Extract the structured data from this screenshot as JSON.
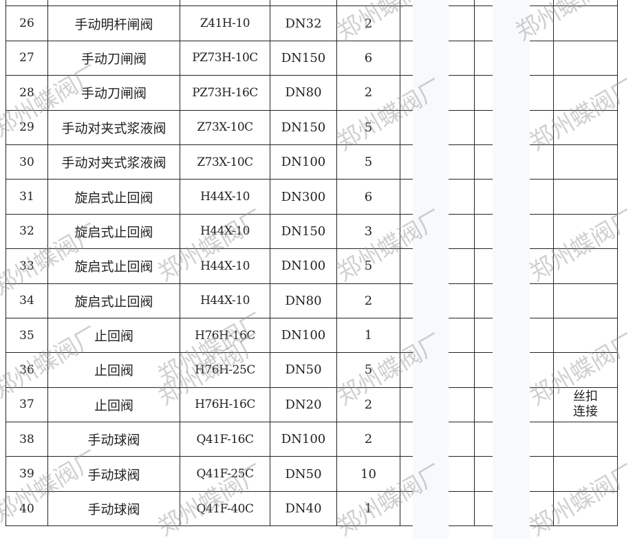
{
  "watermark": "郑州蝶阀厂",
  "rows": [
    {
      "no": "",
      "name": "",
      "model": "",
      "size": "",
      "qty": "",
      "remark": ""
    },
    {
      "no": "26",
      "name": "手动明杆闸阀",
      "model": "Z41H-10",
      "size": "DN32",
      "qty": "2",
      "remark": ""
    },
    {
      "no": "27",
      "name": "手动刀闸阀",
      "model": "PZ73H-10C",
      "size": "DN150",
      "qty": "6",
      "remark": ""
    },
    {
      "no": "28",
      "name": "手动刀闸阀",
      "model": "PZ73H-16C",
      "size": "DN80",
      "qty": "2",
      "remark": ""
    },
    {
      "no": "29",
      "name": "手动对夹式浆液阀",
      "model": "Z73X-10C",
      "size": "DN150",
      "qty": "5",
      "remark": ""
    },
    {
      "no": "30",
      "name": "手动对夹式浆液阀",
      "model": "Z73X-10C",
      "size": "DN100",
      "qty": "5",
      "remark": ""
    },
    {
      "no": "31",
      "name": "旋启式止回阀",
      "model": "H44X-10",
      "size": "DN300",
      "qty": "6",
      "remark": ""
    },
    {
      "no": "32",
      "name": "旋启式止回阀",
      "model": "H44X-10",
      "size": "DN150",
      "qty": "3",
      "remark": ""
    },
    {
      "no": "33",
      "name": "旋启式止回阀",
      "model": "H44X-10",
      "size": "DN100",
      "qty": "5",
      "remark": ""
    },
    {
      "no": "34",
      "name": "旋启式止回阀",
      "model": "H44X-10",
      "size": "DN80",
      "qty": "2",
      "remark": ""
    },
    {
      "no": "35",
      "name": "止回阀",
      "model": "H76H-16C",
      "size": "DN100",
      "qty": "1",
      "remark": ""
    },
    {
      "no": "36",
      "name": "止回阀",
      "model": "H76H-25C",
      "size": "DN50",
      "qty": "5",
      "remark": ""
    },
    {
      "no": "37",
      "name": "止回阀",
      "model": "H76H-16C",
      "size": "DN20",
      "qty": "2",
      "remark": "丝扣\n连接"
    },
    {
      "no": "38",
      "name": "手动球阀",
      "model": "Q41F-16C",
      "size": "DN100",
      "qty": "2",
      "remark": ""
    },
    {
      "no": "39",
      "name": "手动球阀",
      "model": "Q41F-25C",
      "size": "DN50",
      "qty": "10",
      "remark": ""
    },
    {
      "no": "40",
      "name": "手动球阀",
      "model": "Q41F-40C",
      "size": "DN40",
      "qty": "1",
      "remark": ""
    }
  ]
}
